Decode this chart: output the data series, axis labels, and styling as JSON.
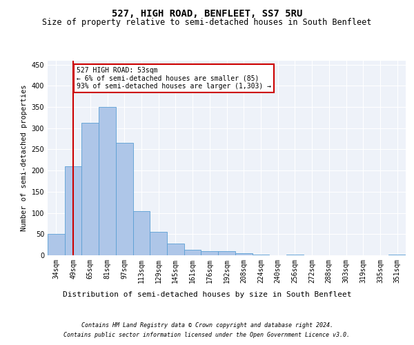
{
  "title": "527, HIGH ROAD, BENFLEET, SS7 5RU",
  "subtitle": "Size of property relative to semi-detached houses in South Benfleet",
  "xlabel": "Distribution of semi-detached houses by size in South Benfleet",
  "ylabel": "Number of semi-detached properties",
  "categories": [
    "34sqm",
    "49sqm",
    "65sqm",
    "81sqm",
    "97sqm",
    "113sqm",
    "129sqm",
    "145sqm",
    "161sqm",
    "176sqm",
    "192sqm",
    "208sqm",
    "224sqm",
    "240sqm",
    "256sqm",
    "272sqm",
    "288sqm",
    "303sqm",
    "319sqm",
    "335sqm",
    "351sqm"
  ],
  "values": [
    50,
    210,
    312,
    350,
    265,
    105,
    55,
    27,
    13,
    10,
    10,
    5,
    1,
    0,
    1,
    0,
    0,
    0,
    0,
    0,
    1
  ],
  "bar_color": "#aec6e8",
  "bar_edge_color": "#5a9fd4",
  "vline_x_index": 1,
  "vline_color": "#cc0000",
  "annotation_text": "527 HIGH ROAD: 53sqm\n← 6% of semi-detached houses are smaller (85)\n93% of semi-detached houses are larger (1,303) →",
  "annotation_box_color": "#ffffff",
  "annotation_box_edge_color": "#cc0000",
  "ylim": [
    0,
    460
  ],
  "yticks": [
    0,
    50,
    100,
    150,
    200,
    250,
    300,
    350,
    400,
    450
  ],
  "footer_line1": "Contains HM Land Registry data © Crown copyright and database right 2024.",
  "footer_line2": "Contains public sector information licensed under the Open Government Licence v3.0.",
  "title_fontsize": 10,
  "subtitle_fontsize": 8.5,
  "xlabel_fontsize": 8,
  "ylabel_fontsize": 7.5,
  "tick_fontsize": 7,
  "annotation_fontsize": 7,
  "footer_fontsize": 6,
  "background_color": "#eef2f9",
  "grid_color": "#ffffff",
  "fig_bg_color": "#ffffff"
}
